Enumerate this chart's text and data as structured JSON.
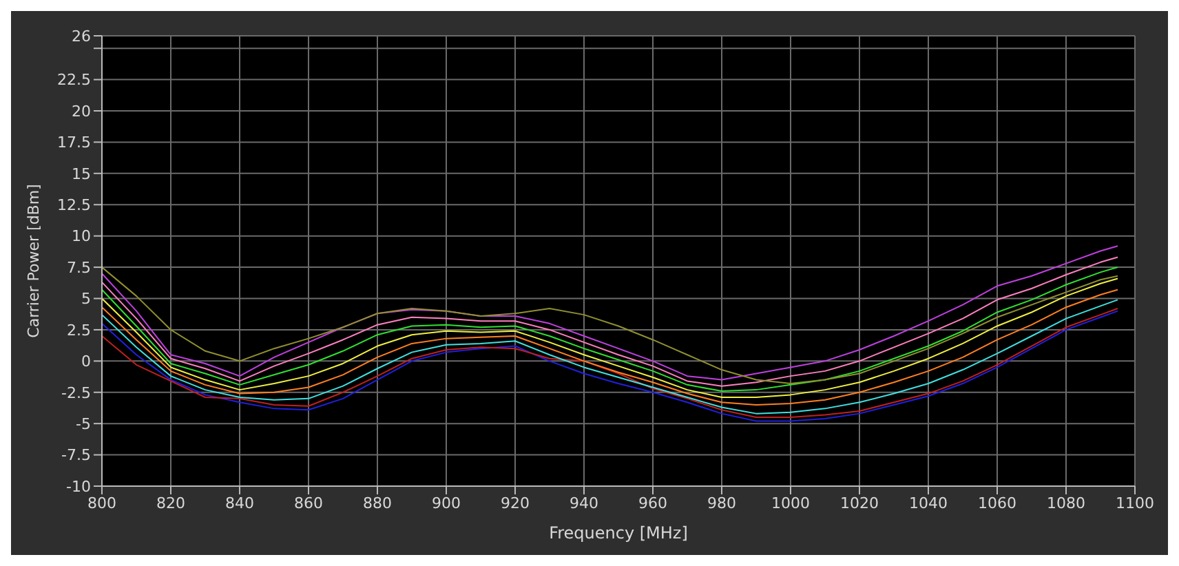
{
  "chart_data": {
    "type": "line",
    "xlabel": "Frequency [MHz]",
    "ylabel": "Carrier Power [dBm]",
    "grid": true,
    "marker": "none",
    "line_style": "solid",
    "xlim": [
      800,
      1100
    ],
    "xticks": [
      800,
      820,
      840,
      860,
      880,
      900,
      920,
      940,
      960,
      980,
      1000,
      1020,
      1040,
      1060,
      1080,
      1100
    ],
    "ylim": [
      -10,
      26
    ],
    "yticks": [
      -10,
      -7.5,
      -5,
      -2.5,
      0,
      2.5,
      5,
      7.5,
      10,
      12.5,
      15,
      17.5,
      20,
      22.5,
      {
        "value": 25,
        "label": null
      },
      26
    ],
    "x": [
      800,
      810,
      820,
      830,
      840,
      850,
      860,
      870,
      880,
      890,
      900,
      910,
      920,
      930,
      940,
      950,
      960,
      970,
      980,
      990,
      1000,
      1010,
      1020,
      1030,
      1040,
      1050,
      1060,
      1070,
      1080,
      1090,
      1095
    ],
    "series": [
      {
        "color": "#2020e0",
        "values": [
          3.0,
          0.5,
          -1.5,
          -2.7,
          -3.3,
          -3.8,
          -3.9,
          -3.0,
          -1.5,
          0.0,
          0.7,
          1.0,
          1.2,
          0.0,
          -1.0,
          -1.8,
          -2.5,
          -3.3,
          -4.2,
          -4.8,
          -4.8,
          -4.6,
          -4.2,
          -3.5,
          -2.8,
          -1.8,
          -0.5,
          1.0,
          2.5,
          3.5,
          4.0
        ]
      },
      {
        "color": "#c02020",
        "values": [
          2.0,
          -0.3,
          -1.6,
          -2.9,
          -3.0,
          -3.5,
          -3.6,
          -2.5,
          -1.2,
          0.2,
          0.9,
          1.1,
          1.0,
          0.2,
          0.0,
          -1.0,
          -2.2,
          -3.0,
          -3.9,
          -4.5,
          -4.5,
          -4.3,
          -4.0,
          -3.3,
          -2.6,
          -1.6,
          -0.3,
          1.2,
          2.7,
          3.7,
          4.2
        ]
      },
      {
        "color": "#40e0e0",
        "values": [
          3.7,
          1.1,
          -1.2,
          -2.3,
          -2.9,
          -3.1,
          -3.0,
          -2.0,
          -0.6,
          0.7,
          1.3,
          1.4,
          1.6,
          0.5,
          -0.5,
          -1.3,
          -2.1,
          -2.9,
          -3.7,
          -4.2,
          -4.1,
          -3.8,
          -3.3,
          -2.6,
          -1.8,
          -0.7,
          0.6,
          2.0,
          3.4,
          4.4,
          4.9
        ]
      },
      {
        "color": "#ff8020",
        "values": [
          4.3,
          1.7,
          -0.8,
          -1.9,
          -2.6,
          -2.5,
          -2.1,
          -1.1,
          0.3,
          1.4,
          1.8,
          1.9,
          2.0,
          1.0,
          0.0,
          -0.9,
          -1.7,
          -2.6,
          -3.3,
          -3.5,
          -3.4,
          -3.1,
          -2.5,
          -1.7,
          -0.8,
          0.3,
          1.7,
          2.9,
          4.3,
          5.3,
          5.7
        ]
      },
      {
        "color": "#f0f040",
        "values": [
          5.0,
          2.3,
          -0.5,
          -1.5,
          -2.3,
          -1.8,
          -1.2,
          -0.2,
          1.2,
          2.1,
          2.4,
          2.3,
          2.4,
          1.5,
          0.5,
          -0.4,
          -1.3,
          -2.3,
          -2.9,
          -2.9,
          -2.7,
          -2.3,
          -1.7,
          -0.8,
          0.2,
          1.4,
          2.8,
          3.9,
          5.2,
          6.2,
          6.6
        ]
      },
      {
        "color": "#30e030",
        "values": [
          5.7,
          2.8,
          -0.2,
          -1.0,
          -1.9,
          -1.1,
          -0.3,
          0.8,
          2.1,
          2.8,
          2.9,
          2.7,
          2.8,
          2.0,
          1.0,
          0.1,
          -0.8,
          -1.9,
          -2.4,
          -2.3,
          -1.9,
          -1.5,
          -0.8,
          0.2,
          1.2,
          2.4,
          3.9,
          4.9,
          6.1,
          7.1,
          7.5
        ]
      },
      {
        "color": "#ff80c0",
        "values": [
          6.3,
          3.4,
          0.2,
          -0.6,
          -1.6,
          -0.4,
          0.6,
          1.7,
          2.9,
          3.5,
          3.4,
          3.2,
          3.2,
          2.5,
          1.5,
          0.5,
          -0.4,
          -1.6,
          -2.0,
          -1.7,
          -1.2,
          -0.8,
          0.0,
          1.1,
          2.2,
          3.4,
          4.9,
          5.8,
          6.9,
          7.9,
          8.3
        ]
      },
      {
        "color": "#c040e0",
        "values": [
          7.0,
          4.0,
          0.5,
          -0.2,
          -1.2,
          0.3,
          1.5,
          2.7,
          3.8,
          4.1,
          4.0,
          3.6,
          3.6,
          3.0,
          2.0,
          1.0,
          0.0,
          -1.2,
          -1.5,
          -1.0,
          -0.5,
          0.0,
          0.9,
          2.0,
          3.2,
          4.5,
          6.0,
          6.8,
          7.8,
          8.8,
          9.2
        ]
      },
      {
        "color": "#909030",
        "values": [
          7.5,
          5.2,
          2.5,
          0.8,
          0.0,
          1.0,
          1.8,
          2.7,
          3.8,
          4.2,
          4.0,
          3.6,
          3.8,
          4.2,
          3.7,
          2.8,
          1.7,
          0.5,
          -0.7,
          -1.5,
          -1.8,
          -1.5,
          -1.0,
          0.0,
          1.0,
          2.2,
          3.5,
          4.5,
          5.5,
          6.5,
          6.8
        ]
      }
    ]
  }
}
